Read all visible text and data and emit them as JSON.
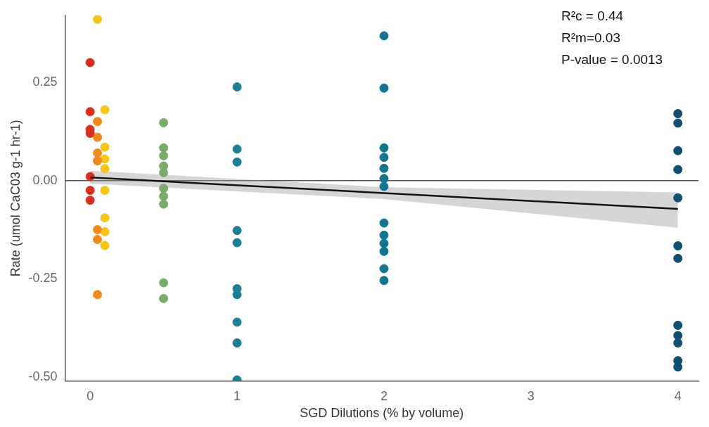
{
  "chart_data": {
    "type": "scatter",
    "xlabel": "SGD Dilutions (% by volume)",
    "ylabel": "Rate (umol CaC03 g-1 hr-1)",
    "annotations": [
      "R²c = 0.44",
      "R²m=0.03",
      "P-value = 0.0013"
    ],
    "xlim": [
      -0.17,
      4.14
    ],
    "xticks": [
      0,
      1,
      2,
      3,
      4
    ],
    "ylim": [
      -0.51,
      0.42
    ],
    "yticks": [
      {
        "value": -0.5,
        "label": "-0.50"
      },
      -0.25,
      {
        "value": 0,
        "label": "0.00"
      },
      0.25
    ],
    "grid": false,
    "legend": false,
    "marker": "circle",
    "ref_lines": [
      {
        "axis": "y",
        "value": 0,
        "color": "#555555"
      }
    ],
    "series": [
      {
        "color": "#d7301f",
        "x": [
          0,
          0,
          0,
          0,
          0,
          0,
          0
        ],
        "values": [
          0.3,
          0.175,
          0.13,
          0.12,
          0.01,
          -0.025,
          -0.05
        ]
      },
      {
        "color": "#f08a1c",
        "x": [
          0.05,
          0.05,
          0.05,
          0.05,
          0.05,
          0.05,
          0.05
        ],
        "values": [
          0.15,
          0.11,
          0.07,
          0.05,
          -0.125,
          -0.15,
          -0.29
        ]
      },
      {
        "color": "#f5c518",
        "x": [
          0.05,
          0.1,
          0.1,
          0.1,
          0.1,
          0.1,
          0.1,
          0.1,
          0.1
        ],
        "values": [
          0.41,
          0.18,
          0.085,
          0.055,
          0.03,
          -0.025,
          -0.095,
          -0.13,
          -0.165
        ]
      },
      {
        "color": "#7aab6b",
        "x": [
          0.5,
          0.5,
          0.5,
          0.5,
          0.5,
          0.5,
          0.5,
          0.5,
          0.5,
          0.5
        ],
        "values": [
          0.147,
          0.083,
          0.063,
          0.037,
          0.02,
          -0.02,
          -0.04,
          -0.06,
          -0.26,
          -0.3
        ]
      },
      {
        "color": "#1a7f94",
        "x": [
          1,
          1,
          1,
          1,
          1,
          1,
          1,
          1,
          1,
          1
        ],
        "values": [
          0.238,
          0.08,
          0.047,
          -0.127,
          -0.158,
          -0.275,
          -0.29,
          -0.36,
          -0.413,
          -0.507
        ]
      },
      {
        "color": "#137590",
        "x": [
          2,
          2,
          2,
          2,
          2,
          2,
          2,
          2,
          2,
          2,
          2,
          2,
          2
        ],
        "values": [
          0.368,
          0.235,
          0.083,
          0.059,
          0.031,
          0.005,
          -0.015,
          -0.108,
          -0.139,
          -0.16,
          -0.18,
          -0.224,
          -0.254
        ]
      },
      {
        "color": "#0e4f73",
        "x": [
          4,
          4,
          4,
          4,
          4,
          4,
          4,
          4,
          4,
          4,
          4,
          4
        ],
        "values": [
          0.17,
          0.146,
          0.076,
          0.028,
          -0.044,
          -0.166,
          -0.198,
          -0.368,
          -0.394,
          -0.413,
          -0.458,
          -0.474
        ]
      },
      {
        "type": "line",
        "color": "#111111",
        "marker": "none",
        "x": [
          0,
          2,
          4
        ],
        "values": [
          0.008,
          -0.032,
          -0.072
        ],
        "lower": [
          -0.008,
          -0.047,
          -0.12
        ],
        "upper": [
          0.025,
          -0.017,
          -0.03
        ]
      }
    ]
  }
}
